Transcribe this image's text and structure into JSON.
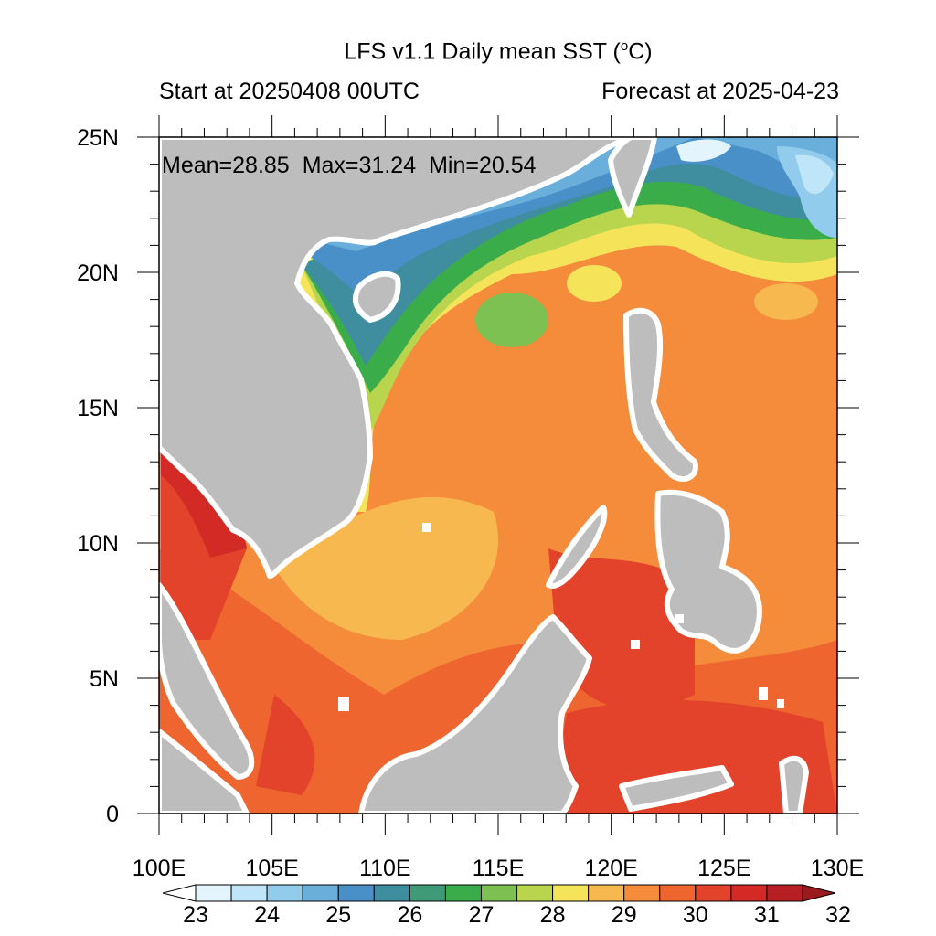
{
  "title": "LFS v1.1 Daily mean SST (°C)",
  "title_main": "LFS v1.1 Daily mean SST (",
  "title_unit_sup": "o",
  "title_unit_tail": "C)",
  "start_text": "Start at 20250408 00UTC",
  "forecast_text": "Forecast at 2025-04-23",
  "stats": {
    "mean_label": "Mean=28.85",
    "max_label": "Max=31.24",
    "min_label": "Min=20.54"
  },
  "colors": {
    "land": "#bdbdbd",
    "ocean_bands": [
      "#ffffff",
      "#e3f4fc",
      "#bfe5f8",
      "#92ccec",
      "#6aaedb",
      "#4a90c8",
      "#3f8ea0",
      "#3f9a78",
      "#3bac4a",
      "#7cc152",
      "#b9d54e",
      "#f5e45a",
      "#f7b84f",
      "#f48c3c",
      "#ee6530",
      "#e2432a",
      "#d42a26",
      "#b81f24",
      "#9a1a1e"
    ]
  },
  "chart_data": {
    "type": "heatmap",
    "title": "LFS v1.1 Daily mean SST (°C)",
    "x_ticks": [
      "100E",
      "105E",
      "110E",
      "115E",
      "120E",
      "125E",
      "130E"
    ],
    "x_values": [
      100,
      105,
      110,
      115,
      120,
      125,
      130
    ],
    "y_ticks": [
      "25N",
      "20N",
      "15N",
      "10N",
      "5N",
      "0"
    ],
    "y_values": [
      25,
      20,
      15,
      10,
      5,
      0
    ],
    "xlim": [
      100,
      130
    ],
    "ylim": [
      0,
      25
    ],
    "colorbar_labels": [
      "23",
      "24",
      "25",
      "26",
      "27",
      "28",
      "29",
      "30",
      "31",
      "32"
    ],
    "colorbar_levels": [
      23,
      23.5,
      24,
      24.5,
      25,
      25.5,
      26,
      26.5,
      27,
      27.5,
      28,
      28.5,
      29,
      29.5,
      30,
      30.5,
      31,
      31.5,
      32
    ],
    "stats": {
      "mean": 28.85,
      "max": 31.24,
      "min": 20.54
    }
  }
}
